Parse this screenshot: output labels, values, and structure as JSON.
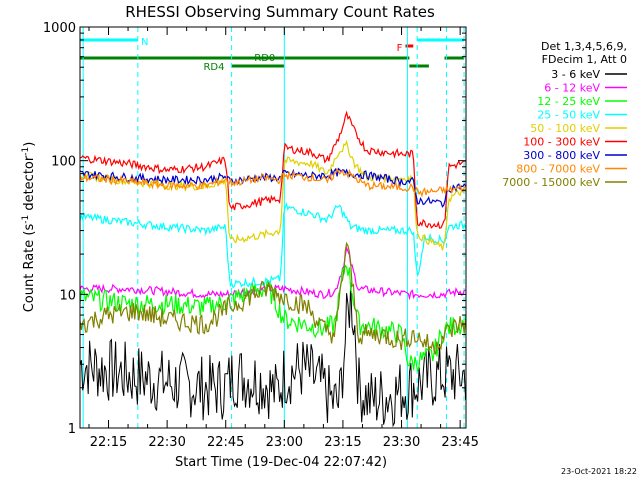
{
  "chart_data": {
    "type": "line",
    "title": "RHESSI Observing Summary Count Rates",
    "xlabel": "Start Time (19-Dec-04 22:07:42)",
    "ylabel_main": "Count Rate (s",
    "ylabel_sup1": "-1",
    "ylabel_mid": " detector",
    "ylabel_sup2": "-1",
    "ylabel_end": ")",
    "x_ticks": [
      "22:15",
      "22:30",
      "22:45",
      "23:00",
      "23:15",
      "23:30",
      "23:45"
    ],
    "x_tick_minutes": [
      15,
      30,
      45,
      60,
      75,
      90,
      105
    ],
    "xlim_minutes": [
      7.7,
      106.5
    ],
    "y_scale": "log",
    "ylim": [
      1,
      1000
    ],
    "y_ticks": [
      "1",
      "10",
      "100",
      "1000"
    ],
    "y_tick_values": [
      1,
      10,
      100,
      1000
    ],
    "legend_header": [
      "Det 1,3,4,5,6,9,",
      "FDecim 1, Att 0"
    ],
    "series": [
      {
        "name": "3 - 6 keV",
        "color": "#000000",
        "points": [
          [
            8,
            3
          ],
          [
            20,
            2.5
          ],
          [
            30,
            2.2
          ],
          [
            40,
            2
          ],
          [
            45,
            2
          ],
          [
            47,
            2.5
          ],
          [
            55,
            2.2
          ],
          [
            58,
            1.8
          ],
          [
            60,
            2.5
          ],
          [
            65,
            2.8
          ],
          [
            70,
            2
          ],
          [
            72,
            1.6
          ],
          [
            74,
            1.5
          ],
          [
            76,
            6
          ],
          [
            77,
            10
          ],
          [
            78,
            6
          ],
          [
            79,
            2
          ],
          [
            82,
            1.6
          ],
          [
            88,
            1.8
          ],
          [
            95,
            2.2
          ],
          [
            100,
            2.5
          ],
          [
            105,
            2.5
          ]
        ]
      },
      {
        "name": "6 - 12 keV",
        "color": "#ff00ff",
        "points": [
          [
            8,
            11
          ],
          [
            20,
            11
          ],
          [
            30,
            10.5
          ],
          [
            40,
            10
          ],
          [
            45,
            10
          ],
          [
            50,
            10.5
          ],
          [
            55,
            11
          ],
          [
            60,
            11
          ],
          [
            65,
            10.5
          ],
          [
            70,
            10
          ],
          [
            73,
            10.5
          ],
          [
            75,
            16
          ],
          [
            76,
            22
          ],
          [
            77,
            17
          ],
          [
            79,
            11
          ],
          [
            85,
            10.5
          ],
          [
            92,
            10
          ],
          [
            100,
            10
          ],
          [
            105,
            10.5
          ]
        ]
      },
      {
        "name": "12 - 25 keV",
        "color": "#00ff00",
        "points": [
          [
            8,
            9.5
          ],
          [
            20,
            8.5
          ],
          [
            30,
            8.5
          ],
          [
            40,
            8
          ],
          [
            46,
            9
          ],
          [
            52,
            10.5
          ],
          [
            56,
            11
          ],
          [
            60,
            6.5
          ],
          [
            65,
            6
          ],
          [
            70,
            5.5
          ],
          [
            73,
            6
          ],
          [
            75,
            14
          ],
          [
            76,
            18
          ],
          [
            77,
            12
          ],
          [
            79,
            6
          ],
          [
            85,
            5.5
          ],
          [
            90,
            5
          ],
          [
            92,
            3
          ],
          [
            98,
            3.5
          ],
          [
            101,
            5.5
          ],
          [
            105,
            6
          ]
        ]
      },
      {
        "name": "25 - 50 keV",
        "color": "#00ffff",
        "points": [
          [
            8,
            38
          ],
          [
            15,
            36
          ],
          [
            22,
            34
          ],
          [
            30,
            32
          ],
          [
            40,
            30
          ],
          [
            45,
            32
          ],
          [
            46,
            12
          ],
          [
            55,
            12.5
          ],
          [
            59,
            13
          ],
          [
            60,
            45
          ],
          [
            67,
            40
          ],
          [
            71,
            36
          ],
          [
            74,
            46
          ],
          [
            77,
            32
          ],
          [
            81,
            30
          ],
          [
            90,
            30
          ],
          [
            93,
            30
          ],
          [
            94,
            13
          ],
          [
            96,
            27
          ],
          [
            101,
            25
          ],
          [
            102,
            32
          ],
          [
            105,
            33
          ]
        ]
      },
      {
        "name": "50 - 100 keV",
        "color": "#e0d000",
        "points": [
          [
            8,
            78
          ],
          [
            20,
            70
          ],
          [
            30,
            65
          ],
          [
            40,
            64
          ],
          [
            45,
            72
          ],
          [
            46,
            25
          ],
          [
            52,
            27
          ],
          [
            55,
            28
          ],
          [
            59,
            30
          ],
          [
            60,
            100
          ],
          [
            67,
            95
          ],
          [
            71,
            80
          ],
          [
            74,
            118
          ],
          [
            76,
            130
          ],
          [
            78,
            95
          ],
          [
            81,
            75
          ],
          [
            90,
            74
          ],
          [
            93,
            74
          ],
          [
            94,
            28
          ],
          [
            96,
            26
          ],
          [
            101,
            22
          ],
          [
            102,
            52
          ],
          [
            105,
            58
          ]
        ]
      },
      {
        "name": "100 - 300 keV",
        "color": "#ff0000",
        "points": [
          [
            8,
            105
          ],
          [
            20,
            95
          ],
          [
            30,
            85
          ],
          [
            40,
            90
          ],
          [
            45,
            102
          ],
          [
            46,
            44
          ],
          [
            52,
            48
          ],
          [
            55,
            50
          ],
          [
            59,
            52
          ],
          [
            60,
            125
          ],
          [
            67,
            115
          ],
          [
            71,
            100
          ],
          [
            74,
            150
          ],
          [
            76,
            220
          ],
          [
            78,
            165
          ],
          [
            81,
            120
          ],
          [
            90,
            112
          ],
          [
            93,
            112
          ],
          [
            94,
            35
          ],
          [
            96,
            34
          ],
          [
            101,
            33
          ],
          [
            102,
            90
          ],
          [
            105,
            95
          ]
        ]
      },
      {
        "name": "300 - 800 keV",
        "color": "#0000cc",
        "points": [
          [
            8,
            80
          ],
          [
            20,
            75
          ],
          [
            30,
            72
          ],
          [
            40,
            72
          ],
          [
            45,
            76
          ],
          [
            46,
            70
          ],
          [
            52,
            74
          ],
          [
            55,
            75
          ],
          [
            59,
            74
          ],
          [
            60,
            80
          ],
          [
            67,
            77
          ],
          [
            71,
            78
          ],
          [
            74,
            82
          ],
          [
            77,
            80
          ],
          [
            81,
            78
          ],
          [
            90,
            70
          ],
          [
            93,
            70
          ],
          [
            94,
            50
          ],
          [
            96,
            50
          ],
          [
            101,
            48
          ],
          [
            102,
            62
          ],
          [
            105,
            64
          ]
        ]
      },
      {
        "name": "800 - 7000 keV",
        "color": "#ff8800",
        "points": [
          [
            8,
            75
          ],
          [
            20,
            70
          ],
          [
            30,
            65
          ],
          [
            40,
            65
          ],
          [
            45,
            72
          ],
          [
            46,
            68
          ],
          [
            52,
            72
          ],
          [
            55,
            74
          ],
          [
            59,
            72
          ],
          [
            60,
            78
          ],
          [
            67,
            75
          ],
          [
            71,
            70
          ],
          [
            74,
            85
          ],
          [
            77,
            78
          ],
          [
            81,
            65
          ],
          [
            90,
            63
          ],
          [
            93,
            63
          ],
          [
            94,
            58
          ],
          [
            96,
            58
          ],
          [
            101,
            60
          ],
          [
            102,
            60
          ],
          [
            105,
            62
          ]
        ]
      },
      {
        "name": "7000 - 15000 keV",
        "color": "#808000",
        "points": [
          [
            8,
            6
          ],
          [
            15,
            7
          ],
          [
            22,
            7.5
          ],
          [
            30,
            6.5
          ],
          [
            40,
            6
          ],
          [
            46,
            8
          ],
          [
            52,
            10
          ],
          [
            56,
            11
          ],
          [
            60,
            9.5
          ],
          [
            66,
            8
          ],
          [
            70,
            5.5
          ],
          [
            73,
            5
          ],
          [
            75,
            14
          ],
          [
            76,
            26
          ],
          [
            77,
            15
          ],
          [
            79,
            5
          ],
          [
            85,
            5
          ],
          [
            90,
            4.5
          ],
          [
            93,
            5
          ],
          [
            98,
            4
          ],
          [
            101,
            5
          ],
          [
            105,
            6
          ]
        ]
      }
    ],
    "vlines_minutes": [
      8.5,
      22.5,
      46.5,
      60,
      91.5,
      94,
      101.5,
      106
    ],
    "annotations": [
      {
        "label": "N",
        "color": "#00ffff"
      },
      {
        "label": "F",
        "color": "#ff0000"
      },
      {
        "label": "RD0",
        "color": "#008000"
      },
      {
        "label": "RD4",
        "color": "#008000"
      }
    ],
    "bars": {
      "N": [
        [
          7.7,
          22.5
        ],
        [
          94,
          106
        ]
      ],
      "F": [
        [
          91,
          93
        ]
      ],
      "RD0": [
        [
          7.7,
          60
        ],
        [
          60,
          92
        ],
        [
          101,
          106
        ]
      ],
      "RD4": [
        [
          46.5,
          60
        ],
        [
          92,
          97
        ]
      ]
    },
    "grid": false,
    "legend_position": "right"
  },
  "footer": {
    "timestamp": "23-Oct-2021 18:22"
  }
}
